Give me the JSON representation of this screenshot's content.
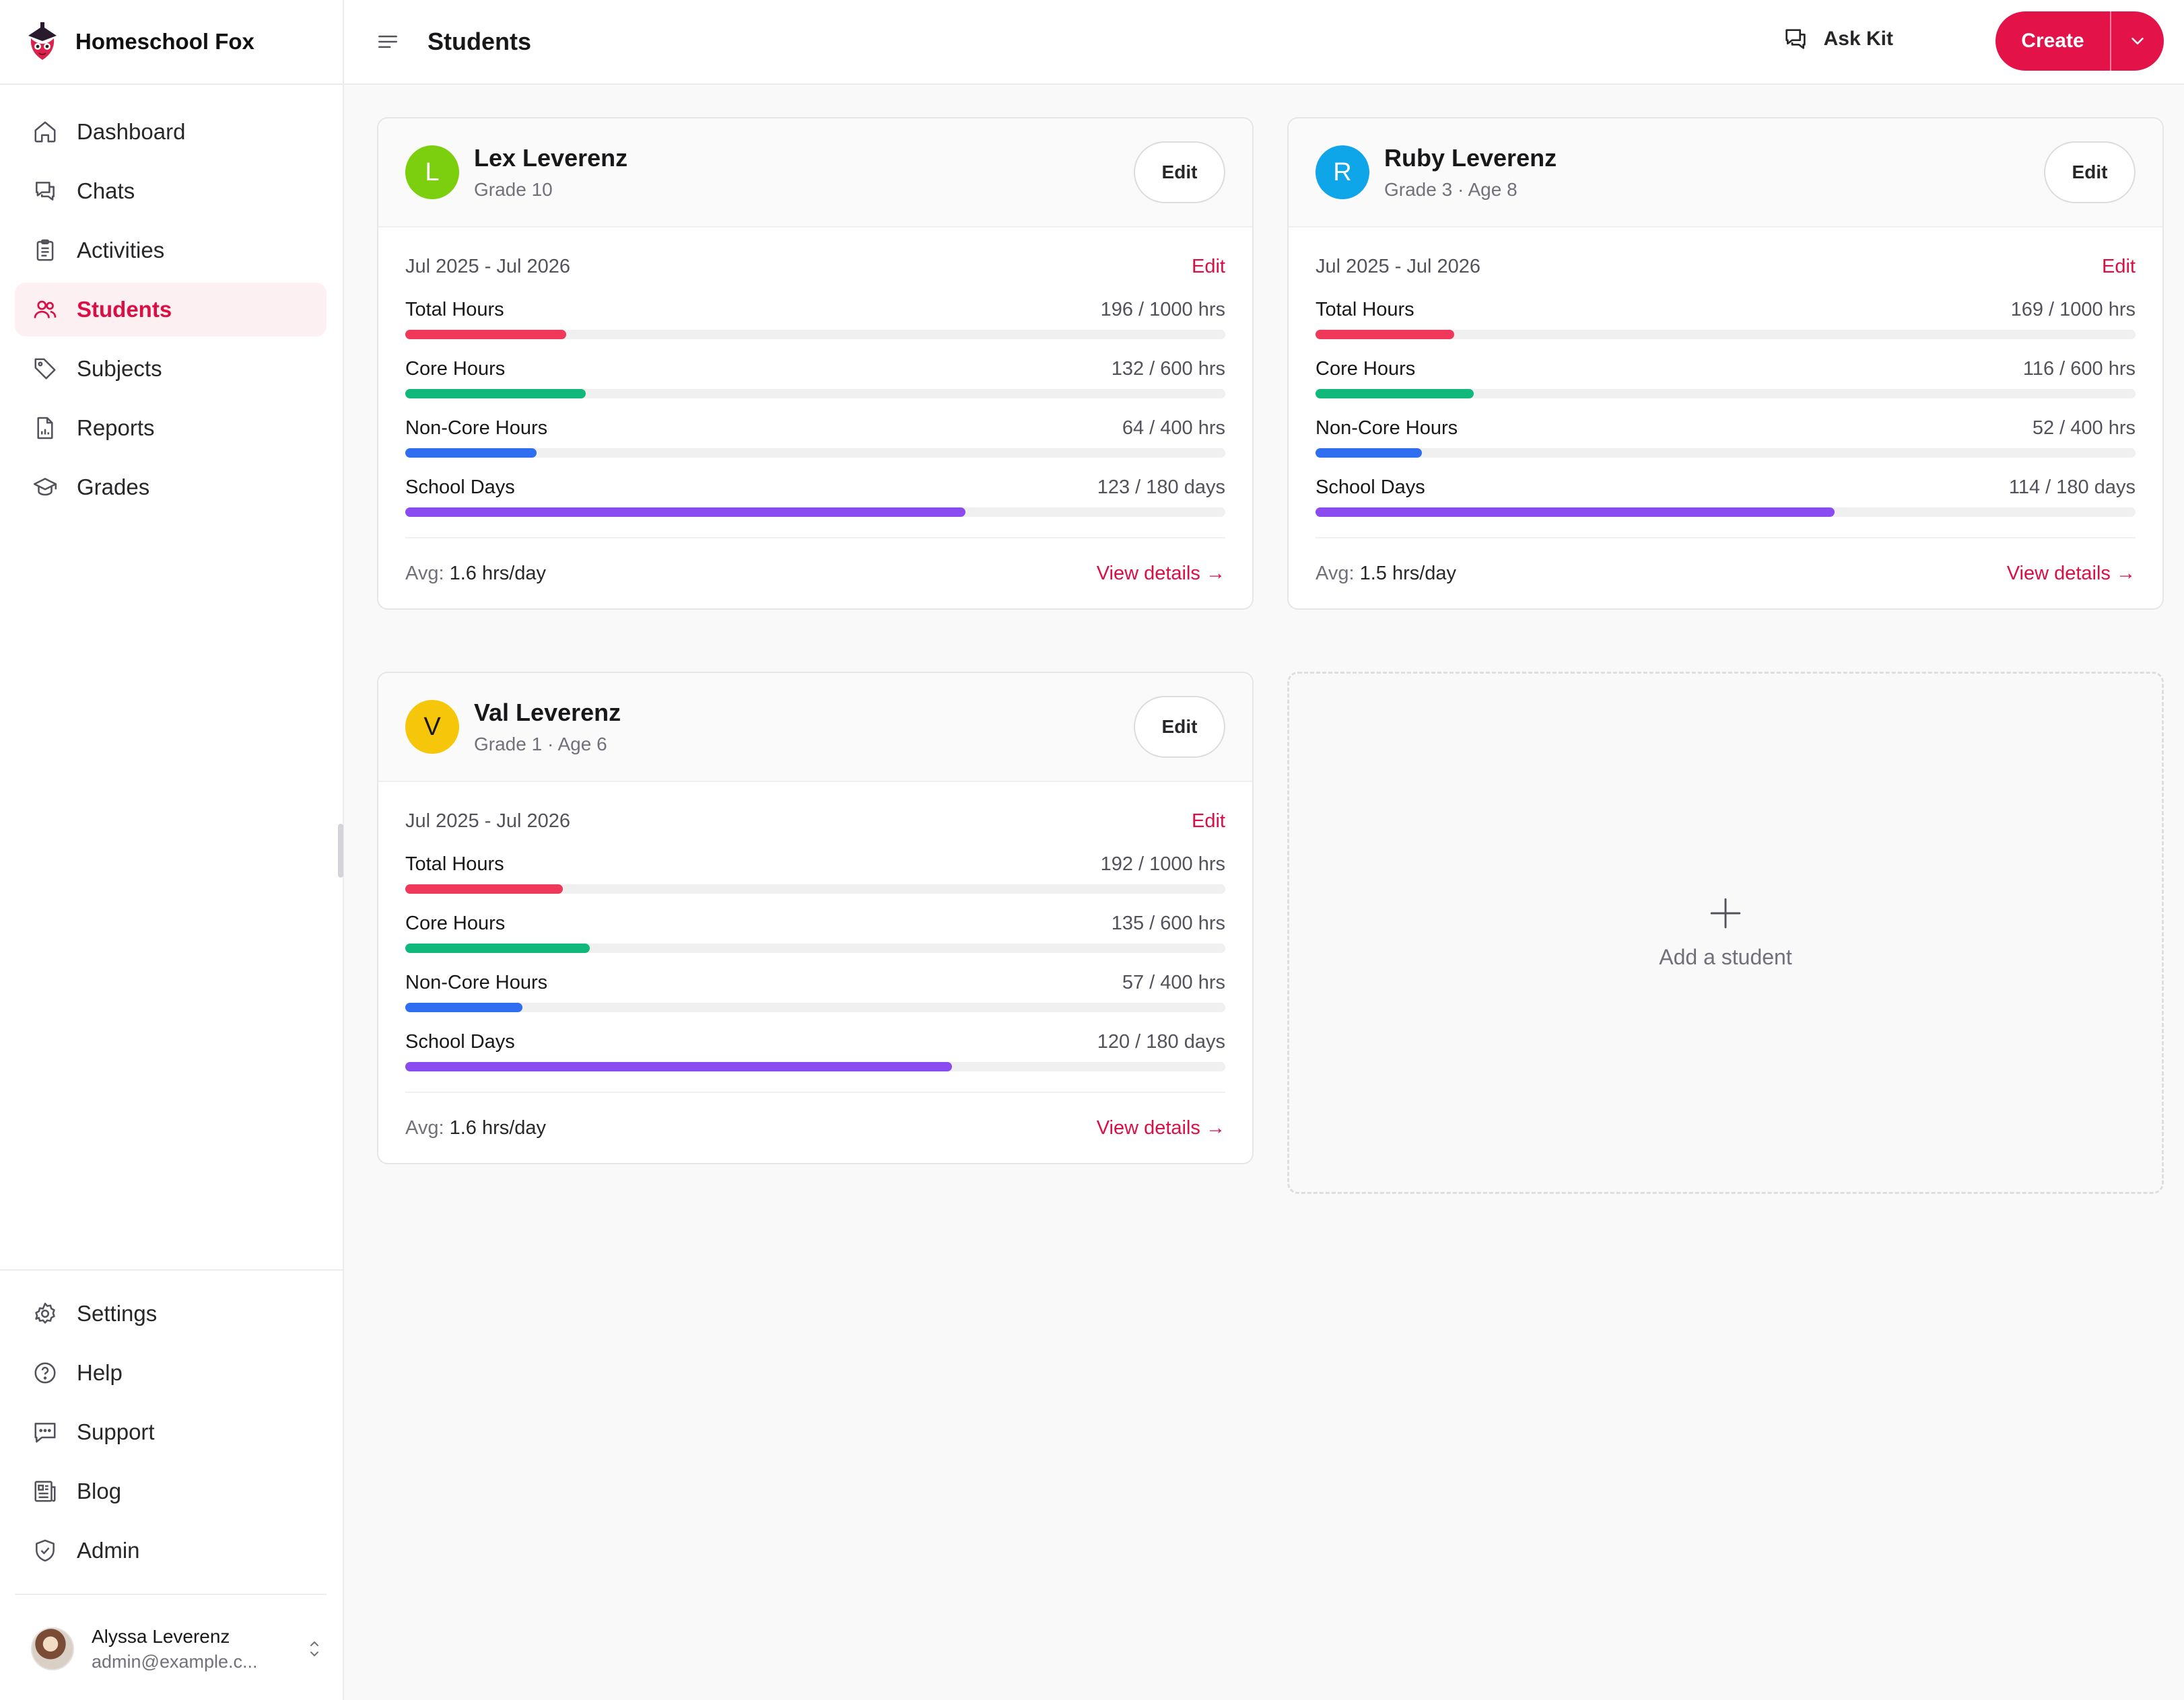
{
  "app": {
    "name": "Homeschool Fox"
  },
  "nav": {
    "items": [
      {
        "label": "Dashboard",
        "icon": "home-icon"
      },
      {
        "label": "Chats",
        "icon": "chat-icon"
      },
      {
        "label": "Activities",
        "icon": "clipboard-icon"
      },
      {
        "label": "Students",
        "icon": "users-icon",
        "active": true
      },
      {
        "label": "Subjects",
        "icon": "tag-icon"
      },
      {
        "label": "Reports",
        "icon": "report-icon"
      },
      {
        "label": "Grades",
        "icon": "graduation-cap-icon"
      }
    ],
    "bottom_items": [
      {
        "label": "Settings",
        "icon": "gear-icon"
      },
      {
        "label": "Help",
        "icon": "help-circle-icon"
      },
      {
        "label": "Support",
        "icon": "support-chat-icon"
      },
      {
        "label": "Blog",
        "icon": "newspaper-icon"
      },
      {
        "label": "Admin",
        "icon": "shield-check-icon"
      }
    ]
  },
  "user": {
    "name": "Alyssa Leverenz",
    "email": "admin@example.c..."
  },
  "header": {
    "title": "Students",
    "ask_kit": "Ask Kit",
    "create": "Create"
  },
  "students": [
    {
      "initial": "L",
      "color": "#7ccf0e",
      "name": "Lex Leverenz",
      "meta": "Grade 10",
      "edit": "Edit",
      "period": "Jul 2025 - Jul 2026",
      "period_edit": "Edit",
      "metrics": [
        {
          "label": "Total Hours",
          "value": "196 / 1000 hrs",
          "fraction": 0.196,
          "color": "#f0385a"
        },
        {
          "label": "Core Hours",
          "value": "132 / 600 hrs",
          "fraction": 0.22,
          "color": "#10b97b"
        },
        {
          "label": "Non-Core Hours",
          "value": "64 / 400 hrs",
          "fraction": 0.16,
          "color": "#2f6ef0"
        },
        {
          "label": "School Days",
          "value": "123 / 180 days",
          "fraction": 0.683,
          "color": "#8a4cf0"
        }
      ],
      "avg_label": "Avg:",
      "avg_value": "1.6 hrs/day",
      "view": "View details →"
    },
    {
      "initial": "R",
      "color": "#0ea5e9",
      "name": "Ruby Leverenz",
      "meta": "Grade 3 · Age 8",
      "edit": "Edit",
      "period": "Jul 2025 - Jul 2026",
      "period_edit": "Edit",
      "metrics": [
        {
          "label": "Total Hours",
          "value": "169 / 1000 hrs",
          "fraction": 0.169,
          "color": "#f0385a"
        },
        {
          "label": "Core Hours",
          "value": "116 / 600 hrs",
          "fraction": 0.193,
          "color": "#10b97b"
        },
        {
          "label": "Non-Core Hours",
          "value": "52 / 400 hrs",
          "fraction": 0.13,
          "color": "#2f6ef0"
        },
        {
          "label": "School Days",
          "value": "114 / 180 days",
          "fraction": 0.633,
          "color": "#8a4cf0"
        }
      ],
      "avg_label": "Avg:",
      "avg_value": "1.5 hrs/day",
      "view": "View details →"
    },
    {
      "initial": "V",
      "color": "#f5c60a",
      "name": "Val Leverenz",
      "meta": "Grade 1 · Age 6",
      "edit": "Edit",
      "period": "Jul 2025 - Jul 2026",
      "period_edit": "Edit",
      "metrics": [
        {
          "label": "Total Hours",
          "value": "192 / 1000 hrs",
          "fraction": 0.192,
          "color": "#f0385a"
        },
        {
          "label": "Core Hours",
          "value": "135 / 600 hrs",
          "fraction": 0.225,
          "color": "#10b97b"
        },
        {
          "label": "Non-Core Hours",
          "value": "57 / 400 hrs",
          "fraction": 0.143,
          "color": "#2f6ef0"
        },
        {
          "label": "School Days",
          "value": "120 / 180 days",
          "fraction": 0.667,
          "color": "#8a4cf0"
        }
      ],
      "avg_label": "Avg:",
      "avg_value": "1.6 hrs/day",
      "view": "View details →"
    }
  ],
  "add_student": "Add a student"
}
